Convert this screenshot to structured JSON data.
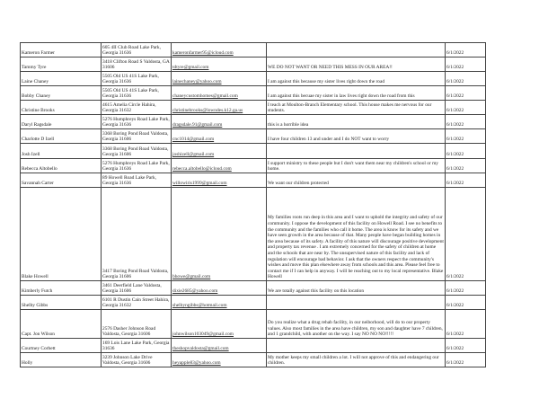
{
  "rows": [
    {
      "name": "Kameron Farmer",
      "address": "605 4II Club Road Lake Park, Georgia 31636",
      "email": "kameronfarmer95@icloud.com",
      "comment": "",
      "date": "6/1/2022"
    },
    {
      "name": "Tammy Tyre",
      "address": "3418 Clifton Road S Valdosta, GA 31606",
      "email": "tdtyre@gmail.com",
      "comment": "WE DO NOT WANT OR NEED THIS MESS IN OUR AREA!!",
      "date": "6/1/2022"
    },
    {
      "name": "Laine Chaney",
      "address": "5505 Old US 41S Lake Park, Georgia 31636",
      "email": "lainechaney@yahoo.com",
      "comment": "I am against this because my sister lives right down the road",
      "date": "6/1/2022"
    },
    {
      "name": "Bobby Chaney",
      "address": "5505 Old US 41S Lake Park, Georgia 31636",
      "email": "chaneycustomhomes@gmail.com",
      "comment": "I am against this becuae my sister in law lives right down the road from this",
      "date": "6/1/2022"
    },
    {
      "name": "Christine Brooks",
      "address": "4615 Amelia Circle Hahira, Georgia 31632",
      "email": "christinebrooks@lowndes.k12.ga.us",
      "comment": "I teach at Moulton-Branch Elementary school. This house makes me nervous for our students.",
      "date": "6/1/2022"
    },
    {
      "name": "Daryl Ragsdale",
      "address": "5276 Humphreys Road Lake Park, Georgia 31636",
      "email": "dragsdale.91@gmail.com",
      "comment": "this is a horrible idea",
      "date": "6/1/2022"
    },
    {
      "name": "Charlotte D Izell",
      "address": "3368 Boring Pond Road Valdosta, Georgia 31606",
      "email": "cnc1014@gmail.com",
      "comment": "I have four children 13 and under and I do NOT want to worry",
      "date": "6/1/2022"
    },
    {
      "name": "Josh Izell",
      "address": "3368 Boring Pond Road Valdosta, Georgia 31606",
      "email": "joshizell@gmail.com",
      "comment": "",
      "date": "6/1/2022"
    },
    {
      "name": "Rebecca Altobello",
      "address": "5276 Humphreys Road Lake Park, Georgia 31636",
      "email": "rebecca.altobello@icloud.com",
      "comment": "I support ministry to these people but I don't want them near my children's school or my home.",
      "date": "6/1/2022"
    },
    {
      "name": "Savannah Carter",
      "address": "89 Howell Road Lake Park, Georgia 31636",
      "email": "willowiris1999@gmail.com",
      "comment": "We want our children protected",
      "date": "6/1/2022"
    },
    {
      "name": "Blake Howell",
      "address": "3417 Boring Pond Road Valdosta, Georgia 31606",
      "email": "bhowe@gmail.com",
      "comment": "My families roots run deep in this area and I want to uphold the integrity and safety of our community. I oppose the development of this facility on Howell Road. I see no benefits to the community and the families who call it home. The area is know for its safety and we have seen growth in the area because of that. Many people have began building homes in the area because of its safety. A facility of this nature will discourage positive development and property tax revenue . I am extremely concerned for the safety of children at home and the schools that are near by. The unsupervised nature of this facility and lack of regulation will encourage bad behavior. I ask that the owners respect the community's wishes and move this plan elsewhere away from schools and this area. Please feel free to contact me if I can help in anyway. I will be reaching out to my local representative. Blake Howell",
      "date": "6/1/2022"
    },
    {
      "name": "Kimberly Futch",
      "address": "3461 Deerfield Lane Valdosta, Georgia 31606",
      "email": "dixie2685@yahoo.com",
      "comment": "We are totally against this facility on this location",
      "date": "6/1/2022"
    },
    {
      "name": "Shelby Gibbs",
      "address": "6101 R Dustin Cain Street Hahira, Georgia 31632",
      "email": "shelbyngibbs@hotmail.com",
      "comment": "",
      "date": "6/1/2022"
    },
    {
      "name": "Capt. Jon Wilson",
      "address": "2576 Dasher Johnson Road Valdosta, Georgia 31606",
      "email": "johnwilson103049@gmail.com",
      "comment": "Do you realize what a drug rehab facility, in our neiborhood, will do to our property values. Also most families in the area have children, my son and daughter have 7 children, and 1 grandchild, with another on the way. I say NO NO NO!!!!!",
      "date": "6/1/2022"
    },
    {
      "name": "Courtney Corbett",
      "address": "169 Lois Lane Lake Park, Georgia 31636",
      "email": "theshopvaldosta@gmail.com",
      "comment": "",
      "date": "6/1/2022"
    },
    {
      "name": "Holly",
      "address": "3239 Johnson Lake Drive Valdosta, Georgia 31606",
      "email": "heyapple83@yahoo.com",
      "comment": "My mother keeps my small children a lot. I will not approve of this and endangering our children.",
      "date": "6/1/2022"
    }
  ]
}
